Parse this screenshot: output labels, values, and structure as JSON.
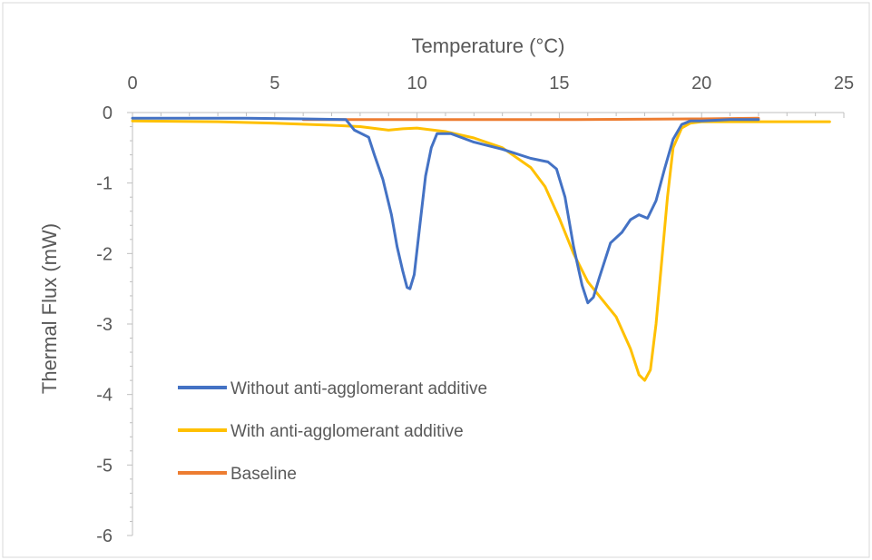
{
  "chart_data": {
    "type": "line",
    "title": "",
    "xlabel": "Temperature (°C)",
    "ylabel": "Thermal Flux (mW)",
    "xlim": [
      0,
      25
    ],
    "ylim": [
      -6,
      0
    ],
    "x_ticks": [
      "0",
      "5",
      "10",
      "15",
      "20",
      "25"
    ],
    "y_ticks": [
      "0",
      "-1",
      "-2",
      "-3",
      "-4",
      "-5",
      "-6"
    ],
    "x_axis_position": "top",
    "grid": false,
    "legend_position": "inside-bottom-left",
    "series": [
      {
        "name": "Without anti-agglomerant additive",
        "color": "#4472C4",
        "x": [
          0,
          2,
          4,
          6,
          7.5,
          7.8,
          8.3,
          8.5,
          8.8,
          9.1,
          9.3,
          9.5,
          9.65,
          9.75,
          9.9,
          10.1,
          10.3,
          10.5,
          10.7,
          11.2,
          12,
          13,
          14,
          14.6,
          14.9,
          15.2,
          15.5,
          15.8,
          16,
          16.2,
          16.4,
          16.8,
          17.2,
          17.5,
          17.8,
          18.1,
          18.4,
          18.7,
          19.0,
          19.3,
          19.6,
          20,
          21,
          22
        ],
        "y": [
          -0.08,
          -0.08,
          -0.08,
          -0.09,
          -0.1,
          -0.25,
          -0.35,
          -0.6,
          -0.95,
          -1.45,
          -1.9,
          -2.25,
          -2.48,
          -2.5,
          -2.3,
          -1.6,
          -0.9,
          -0.5,
          -0.3,
          -0.3,
          -0.42,
          -0.52,
          -0.65,
          -0.7,
          -0.8,
          -1.2,
          -1.9,
          -2.45,
          -2.7,
          -2.62,
          -2.35,
          -1.85,
          -1.7,
          -1.52,
          -1.45,
          -1.5,
          -1.25,
          -0.8,
          -0.38,
          -0.17,
          -0.12,
          -0.12,
          -0.1,
          -0.1
        ]
      },
      {
        "name": "With anti-agglomerant additive",
        "color": "#FFC000",
        "x": [
          0,
          3,
          5,
          7,
          8,
          9,
          9.5,
          10,
          11,
          12,
          13,
          14,
          14.5,
          15,
          15.5,
          16,
          16.5,
          17,
          17.5,
          17.8,
          18,
          18.2,
          18.4,
          18.6,
          18.8,
          19.0,
          19.3,
          19.6,
          20,
          22,
          24.5
        ],
        "y": [
          -0.12,
          -0.13,
          -0.15,
          -0.18,
          -0.2,
          -0.25,
          -0.23,
          -0.22,
          -0.27,
          -0.36,
          -0.5,
          -0.78,
          -1.05,
          -1.5,
          -2.0,
          -2.4,
          -2.65,
          -2.9,
          -3.35,
          -3.72,
          -3.8,
          -3.65,
          -3.0,
          -2.1,
          -1.2,
          -0.5,
          -0.22,
          -0.15,
          -0.13,
          -0.13,
          -0.13
        ]
      },
      {
        "name": "Baseline",
        "color": "#ED7D31",
        "x": [
          6,
          10,
          15,
          20,
          22
        ],
        "y": [
          -0.1,
          -0.1,
          -0.1,
          -0.09,
          -0.08
        ]
      }
    ]
  }
}
